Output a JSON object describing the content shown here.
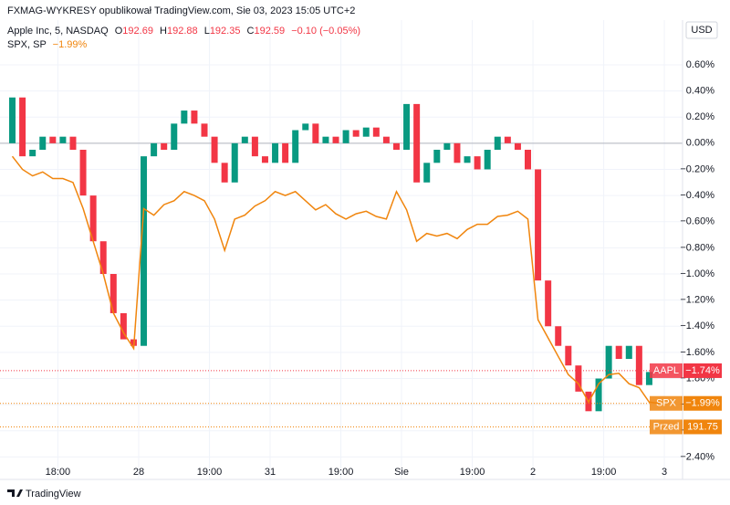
{
  "header": {
    "title": "FXMAG-WYKRESY opublikował TradingView.com, Sie 03, 2023 15:05 UTC+2"
  },
  "legend": {
    "aapl": {
      "name": "Apple Inc, 5, NASDAQ",
      "ohlc": [
        [
          "O",
          "192.69"
        ],
        [
          "H",
          "192.88"
        ],
        [
          "L",
          "192.35"
        ],
        [
          "C",
          "192.59"
        ]
      ],
      "change": "−0.10 (−0.05%)"
    },
    "spx": {
      "name": "SPX, SP",
      "change": "−1.99%"
    }
  },
  "currency": "USD",
  "footer": {
    "brand": "TradingView"
  },
  "chart_data": {
    "type": "candlestick",
    "xlim": [
      -0.72,
      66.8
    ],
    "ylim": [
      -2.46,
      0.9
    ],
    "grid": true,
    "xticks": [
      {
        "value": 5,
        "label": "18:00"
      },
      {
        "value": 13,
        "label": "28"
      },
      {
        "value": 20,
        "label": "19:00"
      },
      {
        "value": 26,
        "label": "31"
      },
      {
        "value": 33,
        "label": "19:00"
      },
      {
        "value": 39,
        "label": "Sie"
      },
      {
        "value": 46,
        "label": "19:00"
      },
      {
        "value": 52,
        "label": "2"
      },
      {
        "value": 59,
        "label": "19:00"
      },
      {
        "value": 65,
        "label": "3"
      }
    ],
    "yticks": [
      {
        "value": 0.6,
        "label": "0.60%"
      },
      {
        "value": 0.4,
        "label": "0.40%"
      },
      {
        "value": 0.2,
        "label": "0.20%"
      },
      {
        "value": 0,
        "label": "0.00%"
      },
      {
        "value": -0.2,
        "label": "−0.20%"
      },
      {
        "value": -0.4,
        "label": "−0.40%"
      },
      {
        "value": -0.6,
        "label": "−0.60%"
      },
      {
        "value": -0.8,
        "label": "−0.80%"
      },
      {
        "value": -1.0,
        "label": "−1.00%"
      },
      {
        "value": -1.2,
        "label": "−1.20%"
      },
      {
        "value": -1.4,
        "label": "−1.40%"
      },
      {
        "value": -1.6,
        "label": "−1.60%"
      },
      {
        "value": -1.8,
        "label": "−1.80%"
      },
      {
        "value": -2.0,
        "label": "−2.00%"
      },
      {
        "value": -2.2,
        "label": "−2.20%"
      },
      {
        "value": -2.4,
        "label": "−2.40%"
      }
    ],
    "x": [
      0,
      1,
      2,
      3,
      4,
      5,
      6,
      7,
      8,
      9,
      10,
      11,
      12,
      13,
      14,
      15,
      16,
      17,
      18,
      19,
      20,
      21,
      22,
      23,
      24,
      25,
      26,
      27,
      28,
      29,
      30,
      31,
      32,
      33,
      34,
      35,
      36,
      37,
      38,
      39,
      40,
      41,
      42,
      43,
      44,
      45,
      46,
      47,
      48,
      49,
      50,
      51,
      52,
      53,
      54,
      55,
      56,
      57,
      58,
      59,
      60,
      61,
      62,
      63,
      64
    ],
    "series": [
      {
        "name": "AAPL",
        "type": "candle",
        "up_color": "#089981",
        "down_color": "#f23645",
        "color": "#f23645",
        "last_label": "−1.74%",
        "values": [
          0.35,
          -0.1,
          -0.05,
          0.05,
          0.0,
          0.05,
          -0.05,
          -0.4,
          -0.75,
          -1.0,
          -1.3,
          -1.5,
          -1.55,
          -0.1,
          0.0,
          -0.05,
          0.15,
          0.25,
          0.15,
          0.05,
          -0.15,
          -0.3,
          0.0,
          0.05,
          -0.1,
          -0.15,
          0.0,
          -0.15,
          0.1,
          0.15,
          0.0,
          0.05,
          0.0,
          0.1,
          0.05,
          0.12,
          0.05,
          0.0,
          -0.05,
          0.3,
          -0.3,
          -0.15,
          -0.05,
          0.0,
          -0.15,
          -0.1,
          -0.2,
          -0.05,
          0.05,
          0.0,
          -0.05,
          -0.2,
          -1.05,
          -1.4,
          -1.55,
          -1.7,
          -1.9,
          -2.05,
          -1.8,
          -1.55,
          -1.65,
          -1.55,
          -1.85,
          -1.75,
          -1.74
        ]
      },
      {
        "name": "SPX",
        "type": "line",
        "color": "#f0850d",
        "last_label": "−1.99%",
        "values": [
          -0.1,
          -0.2,
          -0.25,
          -0.22,
          -0.27,
          -0.27,
          -0.3,
          -0.5,
          -0.75,
          -1.0,
          -1.3,
          -1.45,
          -1.57,
          -0.5,
          -0.55,
          -0.47,
          -0.44,
          -0.37,
          -0.4,
          -0.44,
          -0.58,
          -0.82,
          -0.58,
          -0.55,
          -0.48,
          -0.44,
          -0.37,
          -0.4,
          -0.37,
          -0.44,
          -0.51,
          -0.47,
          -0.54,
          -0.58,
          -0.54,
          -0.52,
          -0.56,
          -0.58,
          -0.37,
          -0.51,
          -0.75,
          -0.69,
          -0.71,
          -0.69,
          -0.73,
          -0.66,
          -0.62,
          -0.62,
          -0.56,
          -0.55,
          -0.52,
          -0.58,
          -1.35,
          -1.49,
          -1.63,
          -1.77,
          -1.84,
          -1.98,
          -1.84,
          -1.77,
          -1.76,
          -1.84,
          -1.87,
          -1.98,
          -1.99
        ]
      }
    ],
    "premarket": {
      "label": "Przed",
      "price": "191.75",
      "level": -2.17,
      "color": "#f0850d"
    }
  }
}
